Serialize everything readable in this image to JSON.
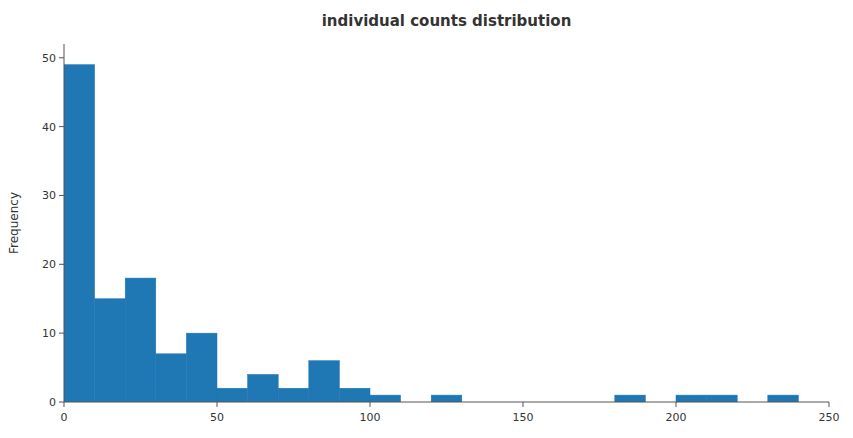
{
  "chart_data": {
    "type": "histogram",
    "title": "individual counts distribution",
    "ylabel": "Frequency",
    "color": "#1f77b4",
    "bins": [
      0,
      10,
      20,
      30,
      40,
      50,
      60,
      70,
      80,
      90,
      100,
      110,
      120,
      130,
      140,
      150,
      160,
      170,
      180,
      190,
      200,
      210,
      220,
      230,
      240,
      250
    ],
    "values": [
      49,
      15,
      18,
      7,
      10,
      2,
      4,
      2,
      6,
      2,
      1,
      0,
      1,
      0,
      0,
      0,
      0,
      0,
      1,
      0,
      1,
      1,
      0,
      1,
      0
    ],
    "xlim": [
      0,
      250
    ],
    "ylim": [
      0,
      52
    ],
    "xticks": [
      0,
      50,
      100,
      150,
      200,
      250
    ],
    "yticks": [
      0,
      10,
      20,
      30,
      40,
      50
    ],
    "grid": false
  }
}
